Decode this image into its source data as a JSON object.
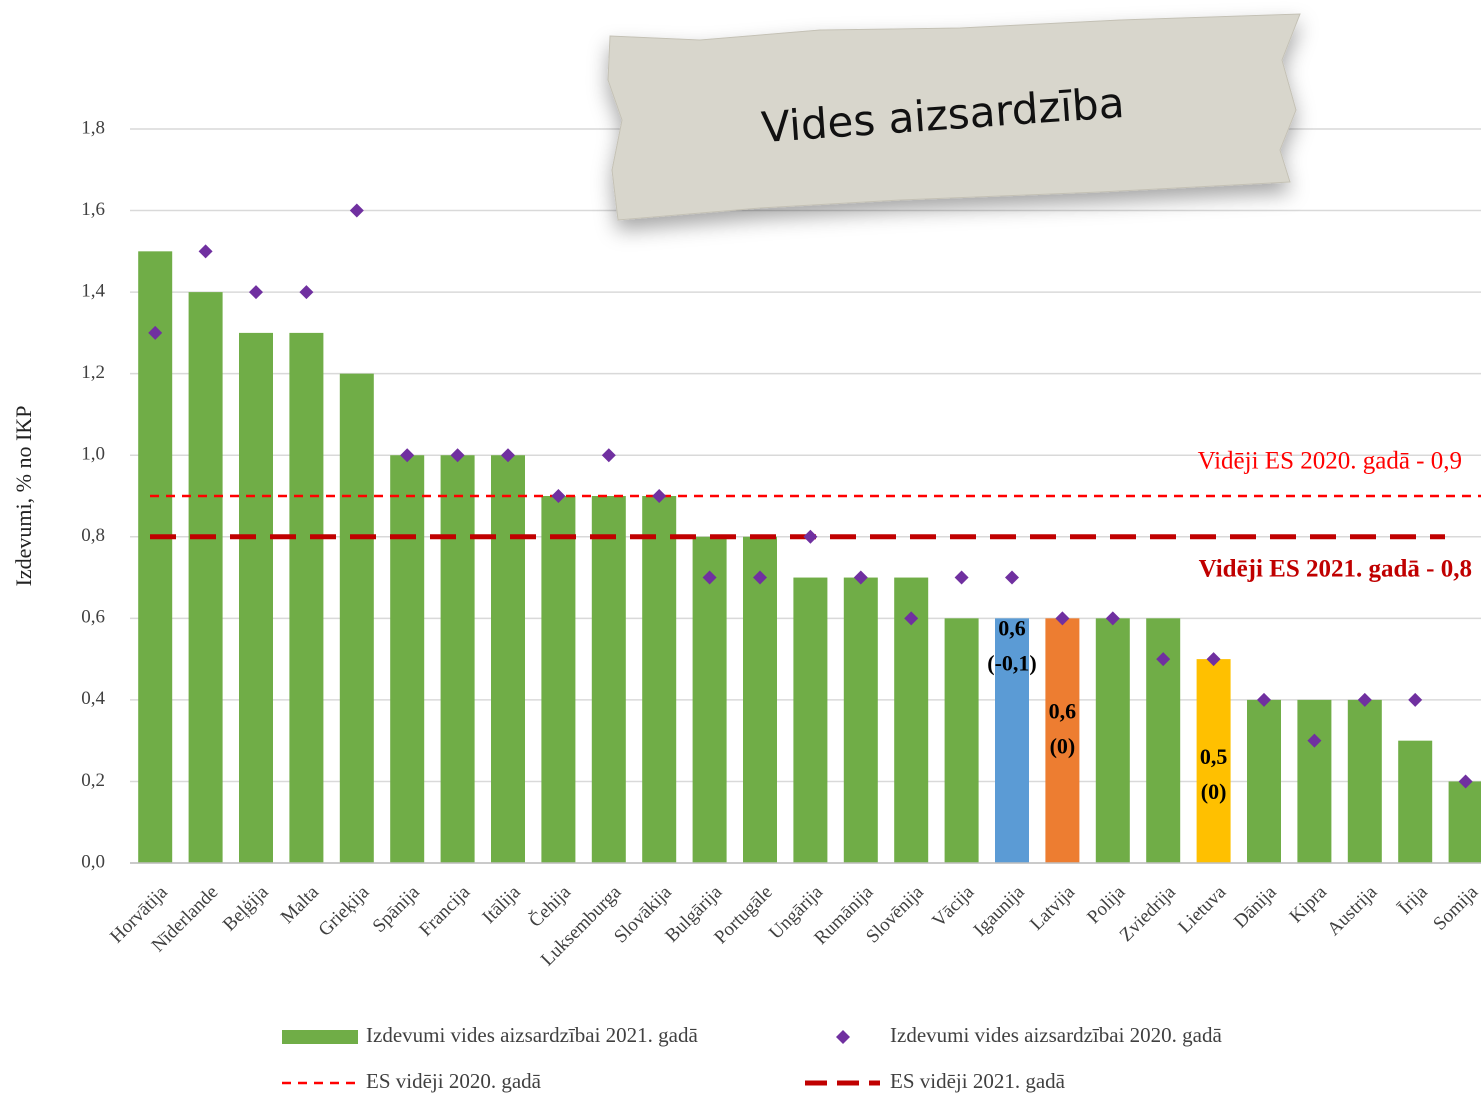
{
  "chart_data": {
    "type": "bar",
    "title": "Vides aizsardzība",
    "y_label": "Izdevumi, % no IKP",
    "categories": [
      "Horvātija",
      "Nīderlande",
      "Beļģija",
      "Malta",
      "Grieķija",
      "Spānija",
      "Francija",
      "Itālija",
      "Čehija",
      "Luksemburga",
      "Slovākija",
      "Bulgārija",
      "Portugāle",
      "Ungārija",
      "Rumānija",
      "Slovēnija",
      "Vācija",
      "Igaunija",
      "Latvija",
      "Polija",
      "Zviedrija",
      "Lietuva",
      "Dānija",
      "Kipra",
      "Austrija",
      "Īrija",
      "Somija"
    ],
    "series": [
      {
        "name": "Izdevumi vides aizsardzībai 2021. gadā",
        "type": "bar",
        "color": "#70ad47",
        "colors": [
          "#70ad47",
          "#70ad47",
          "#70ad47",
          "#70ad47",
          "#70ad47",
          "#70ad47",
          "#70ad47",
          "#70ad47",
          "#70ad47",
          "#70ad47",
          "#70ad47",
          "#70ad47",
          "#70ad47",
          "#70ad47",
          "#70ad47",
          "#70ad47",
          "#70ad47",
          "#5b9bd5",
          "#ed7d31",
          "#70ad47",
          "#70ad47",
          "#ffc000",
          "#70ad47",
          "#70ad47",
          "#70ad47",
          "#70ad47",
          "#70ad47"
        ],
        "values": [
          1.5,
          1.4,
          1.3,
          1.3,
          1.2,
          1.0,
          1.0,
          1.0,
          0.9,
          0.9,
          0.9,
          0.8,
          0.8,
          0.7,
          0.7,
          0.7,
          0.6,
          0.6,
          0.6,
          0.6,
          0.6,
          0.5,
          0.4,
          0.4,
          0.4,
          0.3,
          0.2
        ],
        "value_labels": [
          null,
          null,
          null,
          null,
          null,
          null,
          null,
          null,
          null,
          null,
          null,
          null,
          null,
          null,
          null,
          null,
          null,
          "0,6",
          "0,6",
          null,
          null,
          "0,5",
          null,
          null,
          null,
          null,
          null
        ],
        "change_labels": [
          null,
          null,
          null,
          null,
          null,
          null,
          null,
          null,
          null,
          null,
          null,
          null,
          null,
          null,
          null,
          null,
          null,
          "(-0,1)",
          "(0)",
          null,
          null,
          "(0)",
          null,
          null,
          null,
          null,
          null
        ]
      },
      {
        "name": "Izdevumi vides aizsardzībai 2020. gadā",
        "type": "scatter",
        "color": "#7030a0",
        "values": [
          1.3,
          1.5,
          1.4,
          1.4,
          1.6,
          1.0,
          1.0,
          1.0,
          0.9,
          1.0,
          0.9,
          0.7,
          0.7,
          0.8,
          0.7,
          0.6,
          0.7,
          0.7,
          0.6,
          0.6,
          0.5,
          0.5,
          0.4,
          0.3,
          0.4,
          0.4,
          0.2
        ]
      }
    ],
    "reference_lines": [
      {
        "name": "ES vidēji 2020. gadā",
        "label": "Vidēji ES 2020. gadā - 0,9",
        "value": 0.9,
        "color": "#ff0000"
      },
      {
        "name": "ES vidēji 2021. gadā",
        "label": "Vidēji ES 2021. gadā - 0,8",
        "value": 0.8,
        "color": "#c00000"
      }
    ],
    "ylim": [
      0,
      1.8
    ],
    "yticks": [
      {
        "value": 0,
        "label": "0,0"
      },
      {
        "value": 0.2,
        "label": "0,2"
      },
      {
        "value": 0.4,
        "label": "0,4"
      },
      {
        "value": 0.6,
        "label": "0,6"
      },
      {
        "value": 0.8,
        "label": "0,8"
      },
      {
        "value": 1.0,
        "label": "1,0"
      },
      {
        "value": 1.2,
        "label": "1,2"
      },
      {
        "value": 1.4,
        "label": "1,4"
      },
      {
        "value": 1.6,
        "label": "1,6"
      },
      {
        "value": 1.8,
        "label": "1,8"
      }
    ],
    "grid": true
  }
}
